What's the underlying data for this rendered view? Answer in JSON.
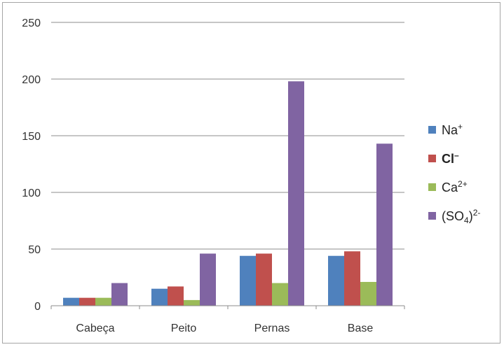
{
  "chart_data": {
    "type": "bar",
    "categories": [
      "Cabeça",
      "Peito",
      "Pernas",
      "Base"
    ],
    "series": [
      {
        "name": "Na⁺",
        "color": "#4f81bd",
        "values": [
          7,
          15,
          44,
          44
        ]
      },
      {
        "name": "Cl⁻",
        "color": "#c0504d",
        "values": [
          7,
          17,
          46,
          48
        ]
      },
      {
        "name": "Ca²⁺",
        "color": "#9bbb59",
        "values": [
          7,
          5,
          20,
          21
        ]
      },
      {
        "name": "(SO₄)²⁻",
        "color": "#8064a2",
        "values": [
          20,
          46,
          198,
          143
        ]
      }
    ],
    "ylim": [
      0,
      250
    ],
    "yticks": [
      "0",
      "50",
      "100",
      "150",
      "200",
      "250"
    ],
    "grid": true,
    "legend": "right",
    "legend_entries": [
      {
        "base": "Na",
        "sup": "+"
      },
      {
        "base": "Cl",
        "sup": "–"
      },
      {
        "base": "Ca",
        "sup": "2+"
      },
      {
        "base": "(SO",
        "sub": "4",
        "close": ")",
        "sup": "2-"
      }
    ]
  }
}
